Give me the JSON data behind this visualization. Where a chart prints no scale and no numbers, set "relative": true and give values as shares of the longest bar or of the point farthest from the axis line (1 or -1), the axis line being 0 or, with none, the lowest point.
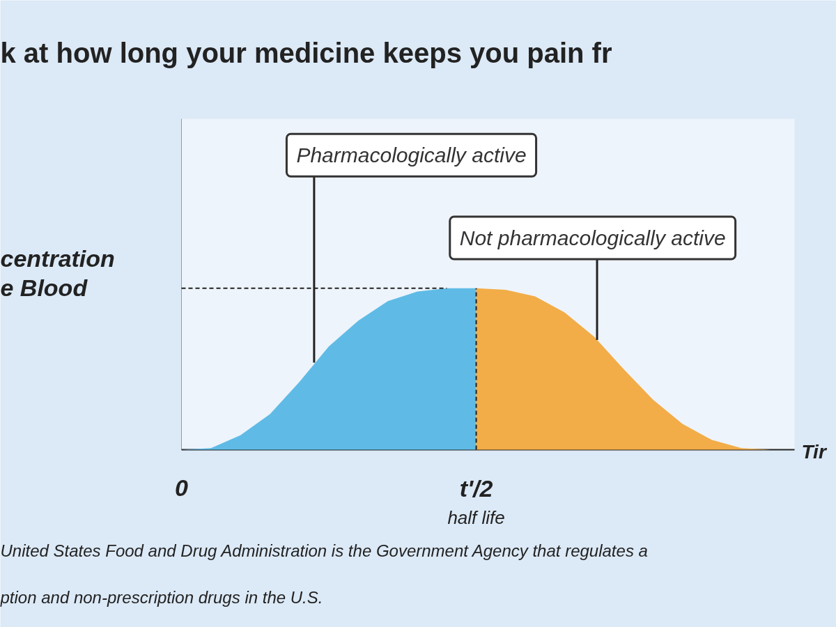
{
  "chart_data": {
    "type": "area",
    "relative": true,
    "title": "k at how long your medicine keeps you pain fr",
    "ylabel": "centration\ne Blood",
    "xlabel": "Tir",
    "categories": [
      "0",
      null,
      null,
      null,
      null,
      null,
      null,
      null,
      null,
      null,
      "t'/2\nhalf life",
      null,
      null,
      null,
      null,
      null,
      null,
      null,
      null,
      null,
      null
    ],
    "series": [
      {
        "color": "#5fbbe6",
        "values": [
          0,
          0.01,
          0.09,
          0.22,
          0.42,
          0.64,
          0.8,
          0.92,
          0.98,
          1.0,
          1.0,
          null,
          null,
          null,
          null,
          null,
          null,
          null,
          null,
          null,
          null
        ]
      },
      {
        "color": "#f2ad48",
        "values": [
          null,
          null,
          null,
          null,
          null,
          null,
          null,
          null,
          null,
          null,
          1.0,
          0.99,
          0.95,
          0.85,
          0.7,
          0.5,
          0.31,
          0.16,
          0.06,
          0.01,
          0
        ]
      }
    ],
    "ref_lines": [
      {
        "axis": "x",
        "value": "t'/2\nhalf life",
        "line_style": "dashed"
      },
      {
        "axis": "y",
        "value": 1.0,
        "line_style": "dashed"
      }
    ],
    "annotations": [
      "Pharmacologically active",
      "Not pharmacologically active",
      "United States Food and Drug Administration is the Government Agency that regulates a",
      "ption and non-prescription drugs in the U.S."
    ],
    "grid": false
  }
}
